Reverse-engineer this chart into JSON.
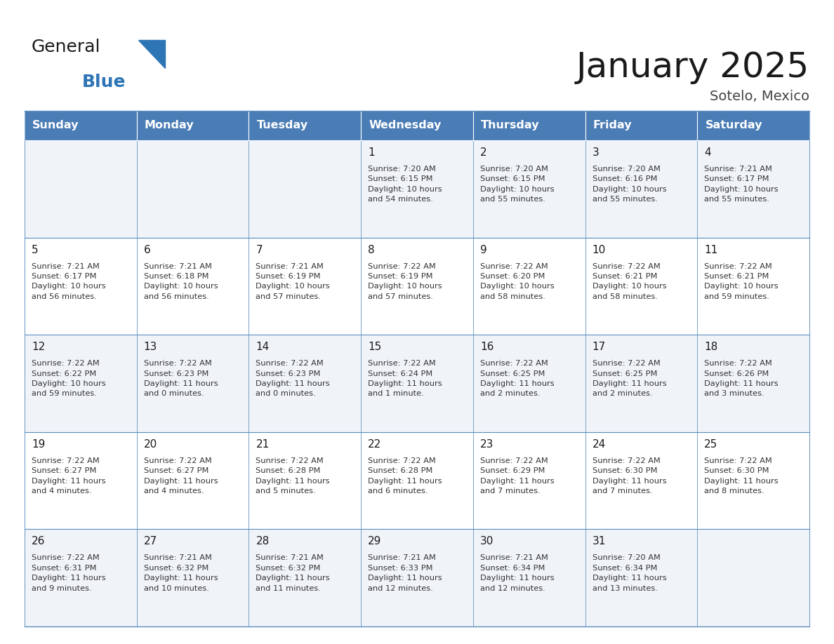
{
  "title": "January 2025",
  "subtitle": "Sotelo, Mexico",
  "days_of_week": [
    "Sunday",
    "Monday",
    "Tuesday",
    "Wednesday",
    "Thursday",
    "Friday",
    "Saturday"
  ],
  "header_bg": "#4A7CB5",
  "header_text_color": "#FFFFFF",
  "cell_bg_light": "#F0F4F8",
  "cell_bg_white": "#FFFFFF",
  "cell_border_color": "#5B8DC0",
  "title_color": "#1a1a1a",
  "subtitle_color": "#444444",
  "logo_general_color": "#1a1a1a",
  "logo_blue_color": "#2E75B6",
  "logo_triangle_color": "#2E75B6",
  "calendar_data": [
    [
      {
        "day": null,
        "info": ""
      },
      {
        "day": null,
        "info": ""
      },
      {
        "day": null,
        "info": ""
      },
      {
        "day": 1,
        "info": "Sunrise: 7:20 AM\nSunset: 6:15 PM\nDaylight: 10 hours\nand 54 minutes."
      },
      {
        "day": 2,
        "info": "Sunrise: 7:20 AM\nSunset: 6:15 PM\nDaylight: 10 hours\nand 55 minutes."
      },
      {
        "day": 3,
        "info": "Sunrise: 7:20 AM\nSunset: 6:16 PM\nDaylight: 10 hours\nand 55 minutes."
      },
      {
        "day": 4,
        "info": "Sunrise: 7:21 AM\nSunset: 6:17 PM\nDaylight: 10 hours\nand 55 minutes."
      }
    ],
    [
      {
        "day": 5,
        "info": "Sunrise: 7:21 AM\nSunset: 6:17 PM\nDaylight: 10 hours\nand 56 minutes."
      },
      {
        "day": 6,
        "info": "Sunrise: 7:21 AM\nSunset: 6:18 PM\nDaylight: 10 hours\nand 56 minutes."
      },
      {
        "day": 7,
        "info": "Sunrise: 7:21 AM\nSunset: 6:19 PM\nDaylight: 10 hours\nand 57 minutes."
      },
      {
        "day": 8,
        "info": "Sunrise: 7:22 AM\nSunset: 6:19 PM\nDaylight: 10 hours\nand 57 minutes."
      },
      {
        "day": 9,
        "info": "Sunrise: 7:22 AM\nSunset: 6:20 PM\nDaylight: 10 hours\nand 58 minutes."
      },
      {
        "day": 10,
        "info": "Sunrise: 7:22 AM\nSunset: 6:21 PM\nDaylight: 10 hours\nand 58 minutes."
      },
      {
        "day": 11,
        "info": "Sunrise: 7:22 AM\nSunset: 6:21 PM\nDaylight: 10 hours\nand 59 minutes."
      }
    ],
    [
      {
        "day": 12,
        "info": "Sunrise: 7:22 AM\nSunset: 6:22 PM\nDaylight: 10 hours\nand 59 minutes."
      },
      {
        "day": 13,
        "info": "Sunrise: 7:22 AM\nSunset: 6:23 PM\nDaylight: 11 hours\nand 0 minutes."
      },
      {
        "day": 14,
        "info": "Sunrise: 7:22 AM\nSunset: 6:23 PM\nDaylight: 11 hours\nand 0 minutes."
      },
      {
        "day": 15,
        "info": "Sunrise: 7:22 AM\nSunset: 6:24 PM\nDaylight: 11 hours\nand 1 minute."
      },
      {
        "day": 16,
        "info": "Sunrise: 7:22 AM\nSunset: 6:25 PM\nDaylight: 11 hours\nand 2 minutes."
      },
      {
        "day": 17,
        "info": "Sunrise: 7:22 AM\nSunset: 6:25 PM\nDaylight: 11 hours\nand 2 minutes."
      },
      {
        "day": 18,
        "info": "Sunrise: 7:22 AM\nSunset: 6:26 PM\nDaylight: 11 hours\nand 3 minutes."
      }
    ],
    [
      {
        "day": 19,
        "info": "Sunrise: 7:22 AM\nSunset: 6:27 PM\nDaylight: 11 hours\nand 4 minutes."
      },
      {
        "day": 20,
        "info": "Sunrise: 7:22 AM\nSunset: 6:27 PM\nDaylight: 11 hours\nand 4 minutes."
      },
      {
        "day": 21,
        "info": "Sunrise: 7:22 AM\nSunset: 6:28 PM\nDaylight: 11 hours\nand 5 minutes."
      },
      {
        "day": 22,
        "info": "Sunrise: 7:22 AM\nSunset: 6:28 PM\nDaylight: 11 hours\nand 6 minutes."
      },
      {
        "day": 23,
        "info": "Sunrise: 7:22 AM\nSunset: 6:29 PM\nDaylight: 11 hours\nand 7 minutes."
      },
      {
        "day": 24,
        "info": "Sunrise: 7:22 AM\nSunset: 6:30 PM\nDaylight: 11 hours\nand 7 minutes."
      },
      {
        "day": 25,
        "info": "Sunrise: 7:22 AM\nSunset: 6:30 PM\nDaylight: 11 hours\nand 8 minutes."
      }
    ],
    [
      {
        "day": 26,
        "info": "Sunrise: 7:22 AM\nSunset: 6:31 PM\nDaylight: 11 hours\nand 9 minutes."
      },
      {
        "day": 27,
        "info": "Sunrise: 7:21 AM\nSunset: 6:32 PM\nDaylight: 11 hours\nand 10 minutes."
      },
      {
        "day": 28,
        "info": "Sunrise: 7:21 AM\nSunset: 6:32 PM\nDaylight: 11 hours\nand 11 minutes."
      },
      {
        "day": 29,
        "info": "Sunrise: 7:21 AM\nSunset: 6:33 PM\nDaylight: 11 hours\nand 12 minutes."
      },
      {
        "day": 30,
        "info": "Sunrise: 7:21 AM\nSunset: 6:34 PM\nDaylight: 11 hours\nand 12 minutes."
      },
      {
        "day": 31,
        "info": "Sunrise: 7:20 AM\nSunset: 6:34 PM\nDaylight: 11 hours\nand 13 minutes."
      },
      {
        "day": null,
        "info": ""
      }
    ]
  ]
}
